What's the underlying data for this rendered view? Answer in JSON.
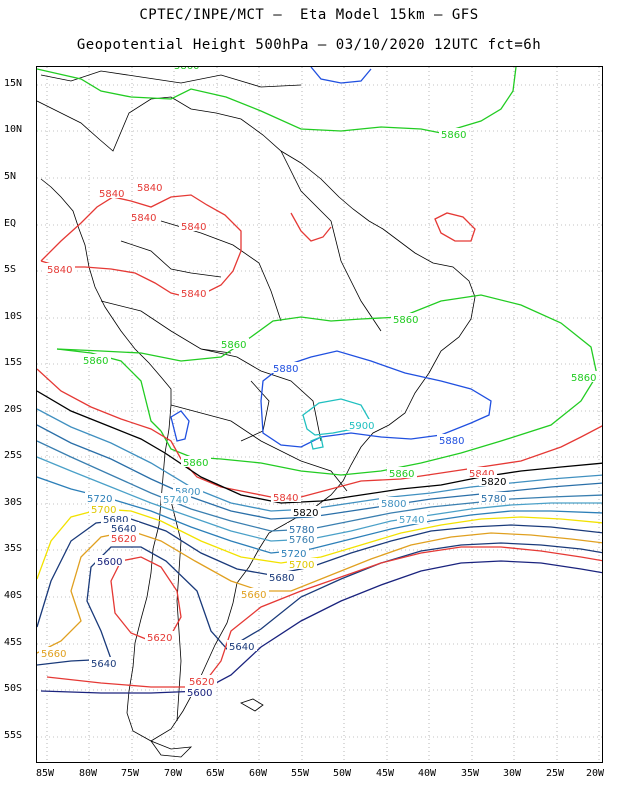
{
  "header": {
    "title_line1": "CPTEC/INPE/MCT –  Eta Model 15km – GFS",
    "title_line2": "Geopotential Height 500hPa – 03/10/2020 12UTC fct=6h"
  },
  "axes": {
    "lat_labels": [
      "15N",
      "10N",
      "5N",
      "EQ",
      "5S",
      "10S",
      "15S",
      "20S",
      "25S",
      "30S",
      "35S",
      "40S",
      "45S",
      "50S",
      "55S"
    ],
    "lon_labels": [
      "85W",
      "80W",
      "75W",
      "70W",
      "65W",
      "60W",
      "55W",
      "50W",
      "45W",
      "40W",
      "35W",
      "30W",
      "25W",
      "20W"
    ],
    "grid": "dotted"
  },
  "contour_colors": {
    "5600": "#1a237e",
    "5620": "#e53935",
    "5640": "#1a3a7a",
    "5660": "#e0a020",
    "5680": "#1a3a7a",
    "5700": "#f2e200",
    "5720": "#2c7fb8",
    "5740": "#4aa0c8",
    "5760": "#3a7fb0",
    "5780": "#2a6fa8",
    "5800": "#4090c0",
    "5820": "#000000",
    "5840": "#e53935",
    "5860": "#22cc22",
    "5880": "#2050e0",
    "5900": "#20c0c0"
  },
  "contour_labels": [
    {
      "text": "5860",
      "color": "#22cc22"
    },
    {
      "text": "5860",
      "color": "#22cc22"
    },
    {
      "text": "5860",
      "color": "#22cc22"
    },
    {
      "text": "5860",
      "color": "#22cc22"
    },
    {
      "text": "5860",
      "color": "#22cc22"
    },
    {
      "text": "5860",
      "color": "#22cc22"
    },
    {
      "text": "5860",
      "color": "#22cc22"
    },
    {
      "text": "5860",
      "color": "#22cc22"
    },
    {
      "text": "5840",
      "color": "#e53935"
    },
    {
      "text": "5840",
      "color": "#e53935"
    },
    {
      "text": "5840",
      "color": "#e53935"
    },
    {
      "text": "5840",
      "color": "#e53935"
    },
    {
      "text": "5840",
      "color": "#e53935"
    },
    {
      "text": "5840",
      "color": "#e53935"
    },
    {
      "text": "5840",
      "color": "#e53935"
    },
    {
      "text": "5840",
      "color": "#e53935"
    },
    {
      "text": "5880",
      "color": "#2050e0"
    },
    {
      "text": "5880",
      "color": "#2050e0"
    },
    {
      "text": "5900",
      "color": "#20c0c0"
    },
    {
      "text": "5820",
      "color": "#000000"
    },
    {
      "text": "5820",
      "color": "#000000"
    },
    {
      "text": "5800",
      "color": "#4090c0"
    },
    {
      "text": "5800",
      "color": "#4090c0"
    },
    {
      "text": "5780",
      "color": "#2a6fa8"
    },
    {
      "text": "5780",
      "color": "#2a6fa8"
    },
    {
      "text": "5760",
      "color": "#3a7fb0"
    },
    {
      "text": "5740",
      "color": "#4aa0c8"
    },
    {
      "text": "5740",
      "color": "#4aa0c8"
    },
    {
      "text": "5720",
      "color": "#2c7fb8"
    },
    {
      "text": "5720",
      "color": "#2c7fb8"
    },
    {
      "text": "5700",
      "color": "#f2e200"
    },
    {
      "text": "5700",
      "color": "#f2e200"
    },
    {
      "text": "5680",
      "color": "#1a3a7a"
    },
    {
      "text": "5680",
      "color": "#1a3a7a"
    },
    {
      "text": "5660",
      "color": "#e0a020"
    },
    {
      "text": "5660",
      "color": "#e0a020"
    },
    {
      "text": "5660",
      "color": "#e0a020"
    },
    {
      "text": "5640",
      "color": "#1a3a7a"
    },
    {
      "text": "5640",
      "color": "#1a3a7a"
    },
    {
      "text": "5640",
      "color": "#1a3a7a"
    },
    {
      "text": "5620",
      "color": "#e53935"
    },
    {
      "text": "5620",
      "color": "#e53935"
    },
    {
      "text": "5620",
      "color": "#e53935"
    },
    {
      "text": "5600",
      "color": "#1a237e"
    },
    {
      "text": "5600",
      "color": "#1a237e"
    }
  ]
}
